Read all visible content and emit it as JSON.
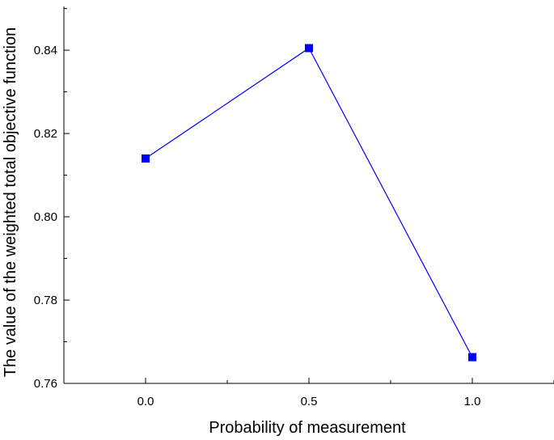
{
  "chart_data": {
    "type": "line",
    "title": "",
    "xlabel": "Probability of measurement",
    "ylabel": "The value of the weighted total objective function",
    "x": [
      0.0,
      0.5,
      1.0
    ],
    "series": [
      {
        "values": [
          0.814,
          0.8405,
          0.7663
        ],
        "color": "#0000ff",
        "marker": "square"
      }
    ],
    "xlim": [
      -0.25,
      1.25
    ],
    "ylim": [
      0.76,
      0.8505
    ],
    "xticks": [
      0.0,
      0.5,
      1.0
    ],
    "xtick_labels": [
      "0.0",
      "0.5",
      "1.0"
    ],
    "yticks": [
      0.76,
      0.78,
      0.8,
      0.82,
      0.84
    ],
    "ytick_labels": [
      "0.76",
      "0.78",
      "0.80",
      "0.82",
      "0.84"
    ],
    "grid": false,
    "legend": "none"
  }
}
